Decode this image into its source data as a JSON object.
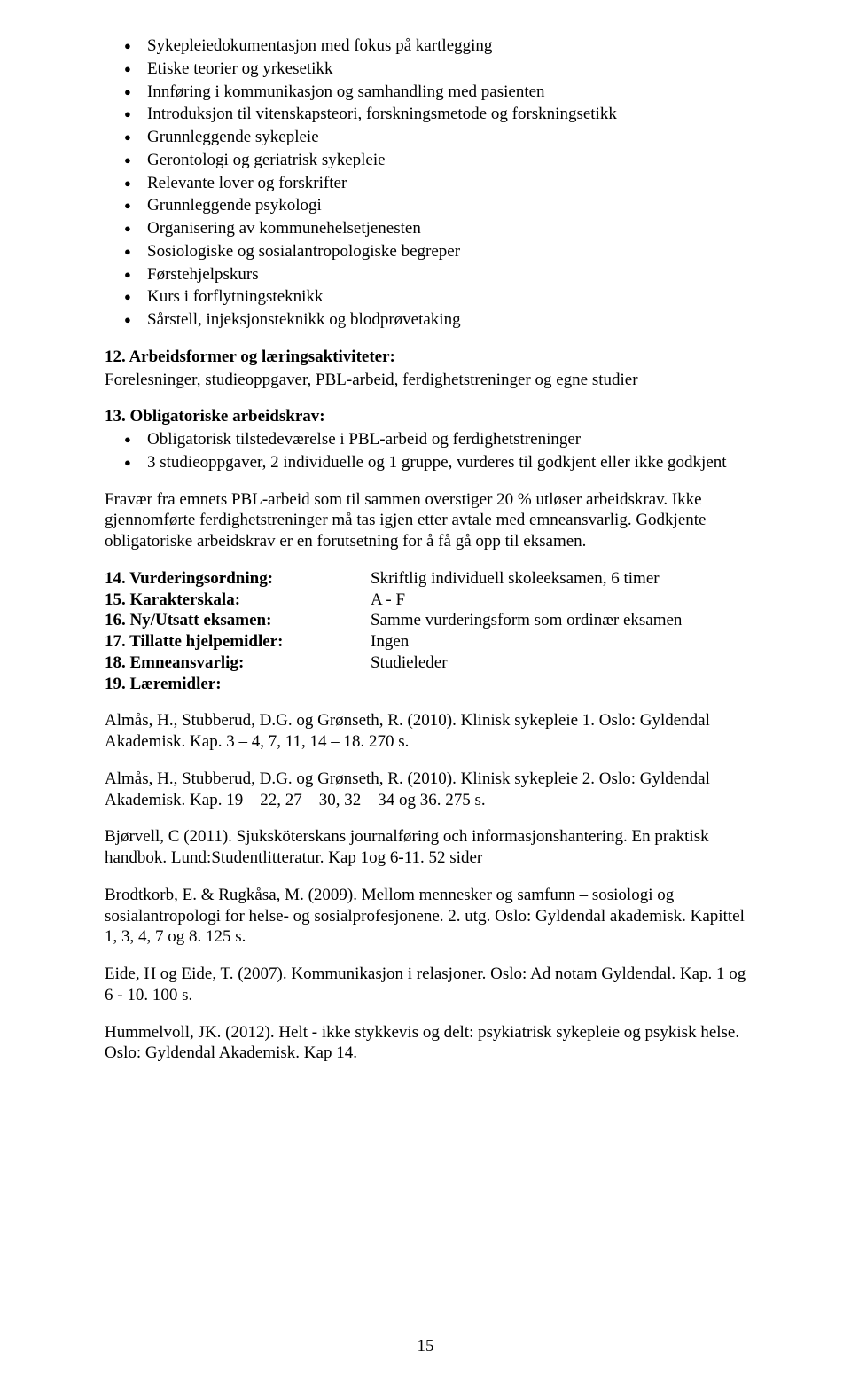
{
  "colors": {
    "text": "#000000",
    "background": "#ffffff"
  },
  "typography": {
    "font_family": "Times New Roman",
    "body_fontsize_pt": 12,
    "line_height": 1.25
  },
  "top_bullets": [
    "Sykepleiedokumentasjon med fokus på kartlegging",
    "Etiske teorier og yrkesetikk",
    "Innføring i kommunikasjon og samhandling med pasienten",
    "Introduksjon til vitenskapsteori, forskningsmetode og forskningsetikk",
    "Grunnleggende sykepleie",
    "Gerontologi og geriatrisk sykepleie",
    "Relevante lover og forskrifter",
    "Grunnleggende psykologi",
    "Organisering av kommunehelsetjenesten",
    "Sosiologiske og sosialantropologiske begreper",
    "Førstehjelpskurs",
    "Kurs i forflytningsteknikk",
    "Sårstell, injeksjonsteknikk og blodprøvetaking"
  ],
  "sec12": {
    "heading": "12. Arbeidsformer og læringsaktiviteter:",
    "text": "Forelesninger, studieoppgaver, PBL-arbeid, ferdighetstreninger og egne studier"
  },
  "sec13": {
    "heading": "13. Obligatoriske arbeidskrav:",
    "bullets": [
      "Obligatorisk tilstedeværelse i PBL-arbeid og ferdighetstreninger",
      "3 studieoppgaver, 2 individuelle og 1 gruppe, vurderes til godkjent eller ikke godkjent"
    ]
  },
  "mid_para": "Fravær fra emnets PBL-arbeid som til sammen overstiger 20 % utløser arbeidskrav. Ikke gjennomførte ferdighetstreninger må tas igjen etter avtale med emneansvarlig. Godkjente obligatoriske arbeidskrav er en forutsetning for å få gå opp til eksamen.",
  "def_rows": [
    {
      "label": "14. Vurderingsordning:",
      "value": "Skriftlig individuell skoleeksamen, 6 timer"
    },
    {
      "label": "15. Karakterskala:",
      "value": "A - F"
    },
    {
      "label": "16. Ny/Utsatt eksamen:",
      "value": "Samme vurderingsform som ordinær eksamen"
    },
    {
      "label": "17. Tillatte hjelpemidler:",
      "value": "Ingen"
    },
    {
      "label": "18. Emneansvarlig:",
      "value": "Studieleder"
    },
    {
      "label": "19. Læremidler:",
      "value": ""
    }
  ],
  "refs": [
    "Almås, H., Stubberud, D.G. og Grønseth, R. (2010). Klinisk sykepleie 1. Oslo: Gyldendal Akademisk. Kap. 3 – 4, 7, 11, 14 – 18. 270 s.",
    "Almås, H., Stubberud, D.G. og Grønseth, R. (2010). Klinisk sykepleie 2. Oslo: Gyldendal Akademisk. Kap. 19 – 22, 27 – 30, 32 – 34 og 36. 275 s.",
    "Bjørvell, C (2011). Sjuksköterskans journalføring och informasjonshantering. En praktisk handbok. Lund:Studentlitteratur. Kap 1og 6-11. 52 sider",
    "Brodtkorb, E. & Rugkåsa, M. (2009). Mellom mennesker og samfunn – sosiologi og sosialantropologi for helse- og sosialprofesjonene. 2. utg. Oslo: Gyldendal akademisk. Kapittel 1, 3, 4, 7 og 8. 125 s.",
    "Eide, H og Eide, T. (2007). Kommunikasjon i relasjoner. Oslo: Ad notam Gyldendal. Kap. 1 og 6 - 10. 100 s.",
    "Hummelvoll, JK. (2012). Helt - ikke stykkevis og delt: psykiatrisk sykepleie og psykisk helse. Oslo: Gyldendal Akademisk. Kap 14."
  ],
  "page_number": "15"
}
